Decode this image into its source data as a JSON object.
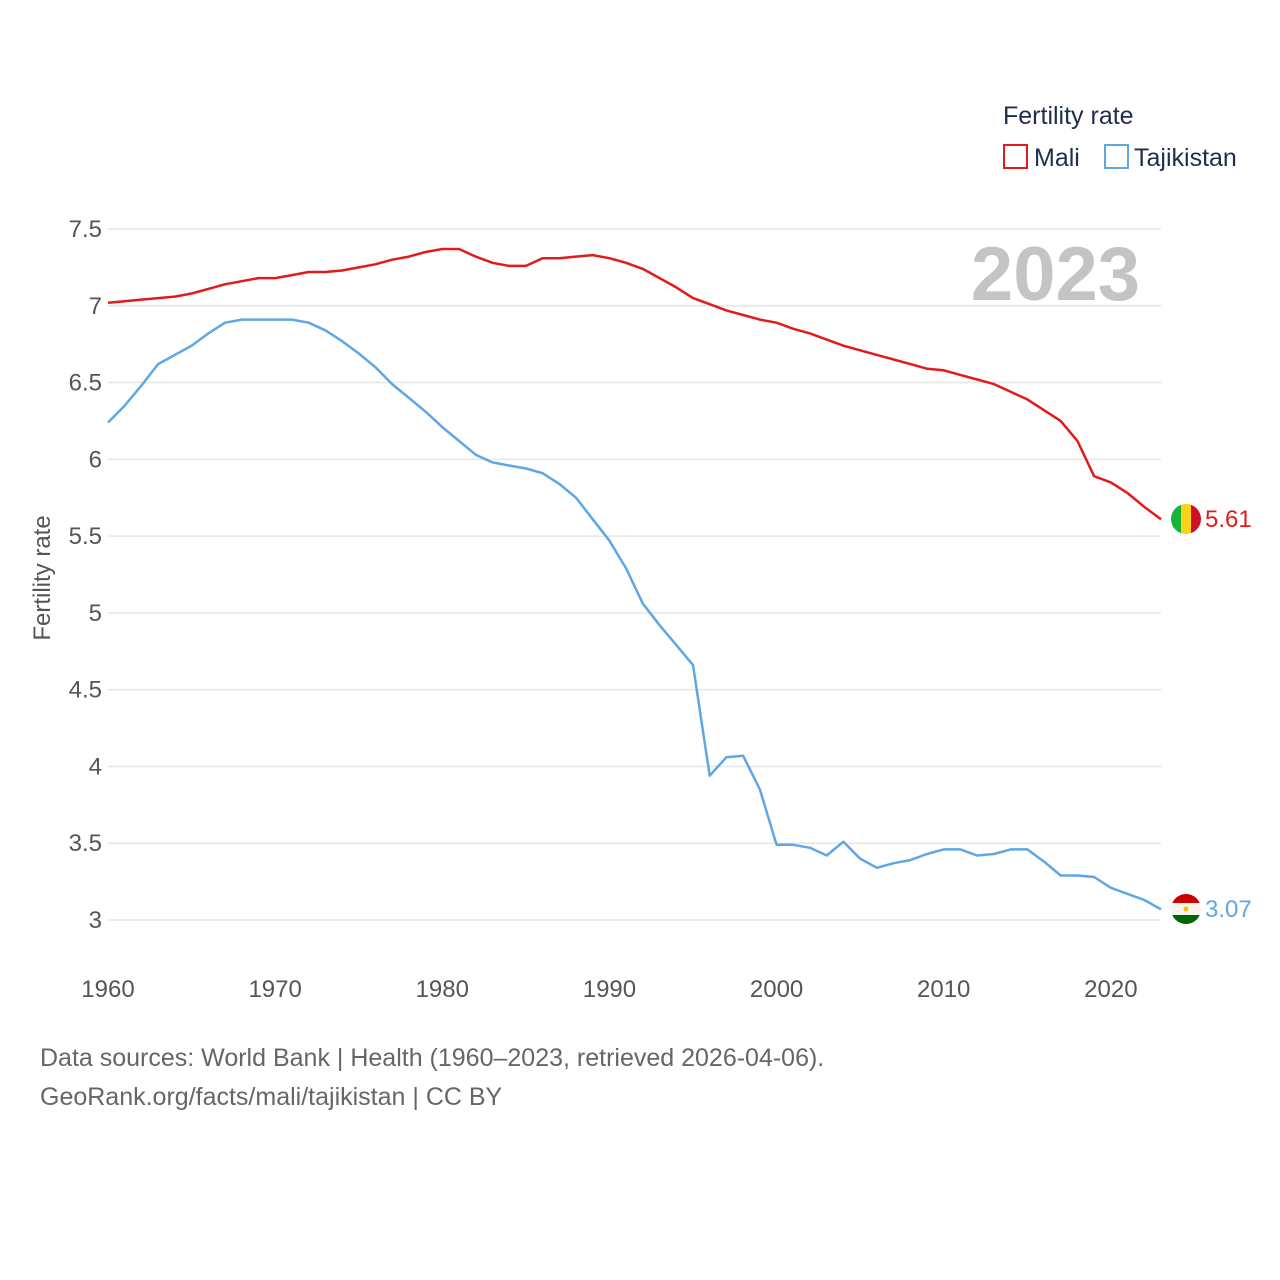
{
  "chart_data": {
    "type": "line",
    "ylabel": "Fertility rate",
    "xlabel": "",
    "xlim": [
      1960,
      2023
    ],
    "ylim": [
      2.8,
      7.65
    ],
    "x_ticks": [
      1960,
      1970,
      1980,
      1990,
      2000,
      2010,
      2020
    ],
    "y_ticks": [
      3,
      3.5,
      4,
      4.5,
      5,
      5.5,
      6,
      6.5,
      7,
      7.5
    ],
    "grid": true,
    "legend": {
      "title": "Fertility rate",
      "position": "top-right"
    },
    "current_year": "2023",
    "series": [
      {
        "name": "Mali",
        "color": "#e31a1c",
        "end_label": "5.61",
        "x": [
          1960,
          1961,
          1962,
          1963,
          1964,
          1965,
          1966,
          1967,
          1968,
          1969,
          1970,
          1971,
          1972,
          1973,
          1974,
          1975,
          1976,
          1977,
          1978,
          1979,
          1980,
          1981,
          1982,
          1983,
          1984,
          1985,
          1986,
          1987,
          1988,
          1989,
          1990,
          1991,
          1992,
          1993,
          1994,
          1995,
          1996,
          1997,
          1998,
          1999,
          2000,
          2001,
          2002,
          2003,
          2004,
          2005,
          2006,
          2007,
          2008,
          2009,
          2010,
          2011,
          2012,
          2013,
          2014,
          2015,
          2016,
          2017,
          2018,
          2019,
          2020,
          2021,
          2022,
          2023
        ],
        "values": [
          7.02,
          7.03,
          7.04,
          7.05,
          7.06,
          7.08,
          7.11,
          7.14,
          7.16,
          7.18,
          7.18,
          7.2,
          7.22,
          7.22,
          7.23,
          7.25,
          7.27,
          7.3,
          7.32,
          7.35,
          7.37,
          7.37,
          7.32,
          7.28,
          7.26,
          7.26,
          7.31,
          7.31,
          7.32,
          7.33,
          7.31,
          7.28,
          7.24,
          7.18,
          7.12,
          7.05,
          7.01,
          6.97,
          6.94,
          6.91,
          6.89,
          6.85,
          6.82,
          6.78,
          6.74,
          6.71,
          6.68,
          6.65,
          6.62,
          6.59,
          6.58,
          6.55,
          6.52,
          6.49,
          6.44,
          6.39,
          6.32,
          6.25,
          6.12,
          5.89,
          5.85,
          5.78,
          5.69,
          5.61
        ]
      },
      {
        "name": "Tajikistan",
        "color": "#5fa7e4",
        "end_label": "3.07",
        "x": [
          1960,
          1961,
          1962,
          1963,
          1964,
          1965,
          1966,
          1967,
          1968,
          1969,
          1970,
          1971,
          1972,
          1973,
          1974,
          1975,
          1976,
          1977,
          1978,
          1979,
          1980,
          1981,
          1982,
          1983,
          1984,
          1985,
          1986,
          1987,
          1988,
          1989,
          1990,
          1991,
          1992,
          1993,
          1994,
          1995,
          1996,
          1997,
          1998,
          1999,
          2000,
          2001,
          2002,
          2003,
          2004,
          2005,
          2006,
          2007,
          2008,
          2009,
          2010,
          2011,
          2012,
          2013,
          2014,
          2015,
          2016,
          2017,
          2018,
          2019,
          2020,
          2021,
          2022,
          2023
        ],
        "values": [
          6.24,
          6.35,
          6.48,
          6.62,
          6.68,
          6.74,
          6.82,
          6.89,
          6.91,
          6.91,
          6.91,
          6.91,
          6.89,
          6.84,
          6.77,
          6.69,
          6.6,
          6.49,
          6.4,
          6.31,
          6.21,
          6.12,
          6.03,
          5.98,
          5.96,
          5.94,
          5.91,
          5.84,
          5.75,
          5.61,
          5.47,
          5.29,
          5.06,
          4.92,
          4.79,
          4.66,
          3.94,
          4.06,
          4.07,
          3.85,
          3.49,
          3.49,
          3.47,
          3.42,
          3.51,
          3.4,
          3.34,
          3.37,
          3.39,
          3.43,
          3.46,
          3.46,
          3.42,
          3.43,
          3.46,
          3.46,
          3.38,
          3.29,
          3.29,
          3.28,
          3.21,
          3.17,
          3.13,
          3.07
        ]
      }
    ]
  },
  "footer": {
    "line1": "Data sources: World Bank | Health (1960–2023, retrieved 2026-04-06).",
    "line2": "GeoRank.org/facts/mali/tajikistan | CC BY"
  }
}
